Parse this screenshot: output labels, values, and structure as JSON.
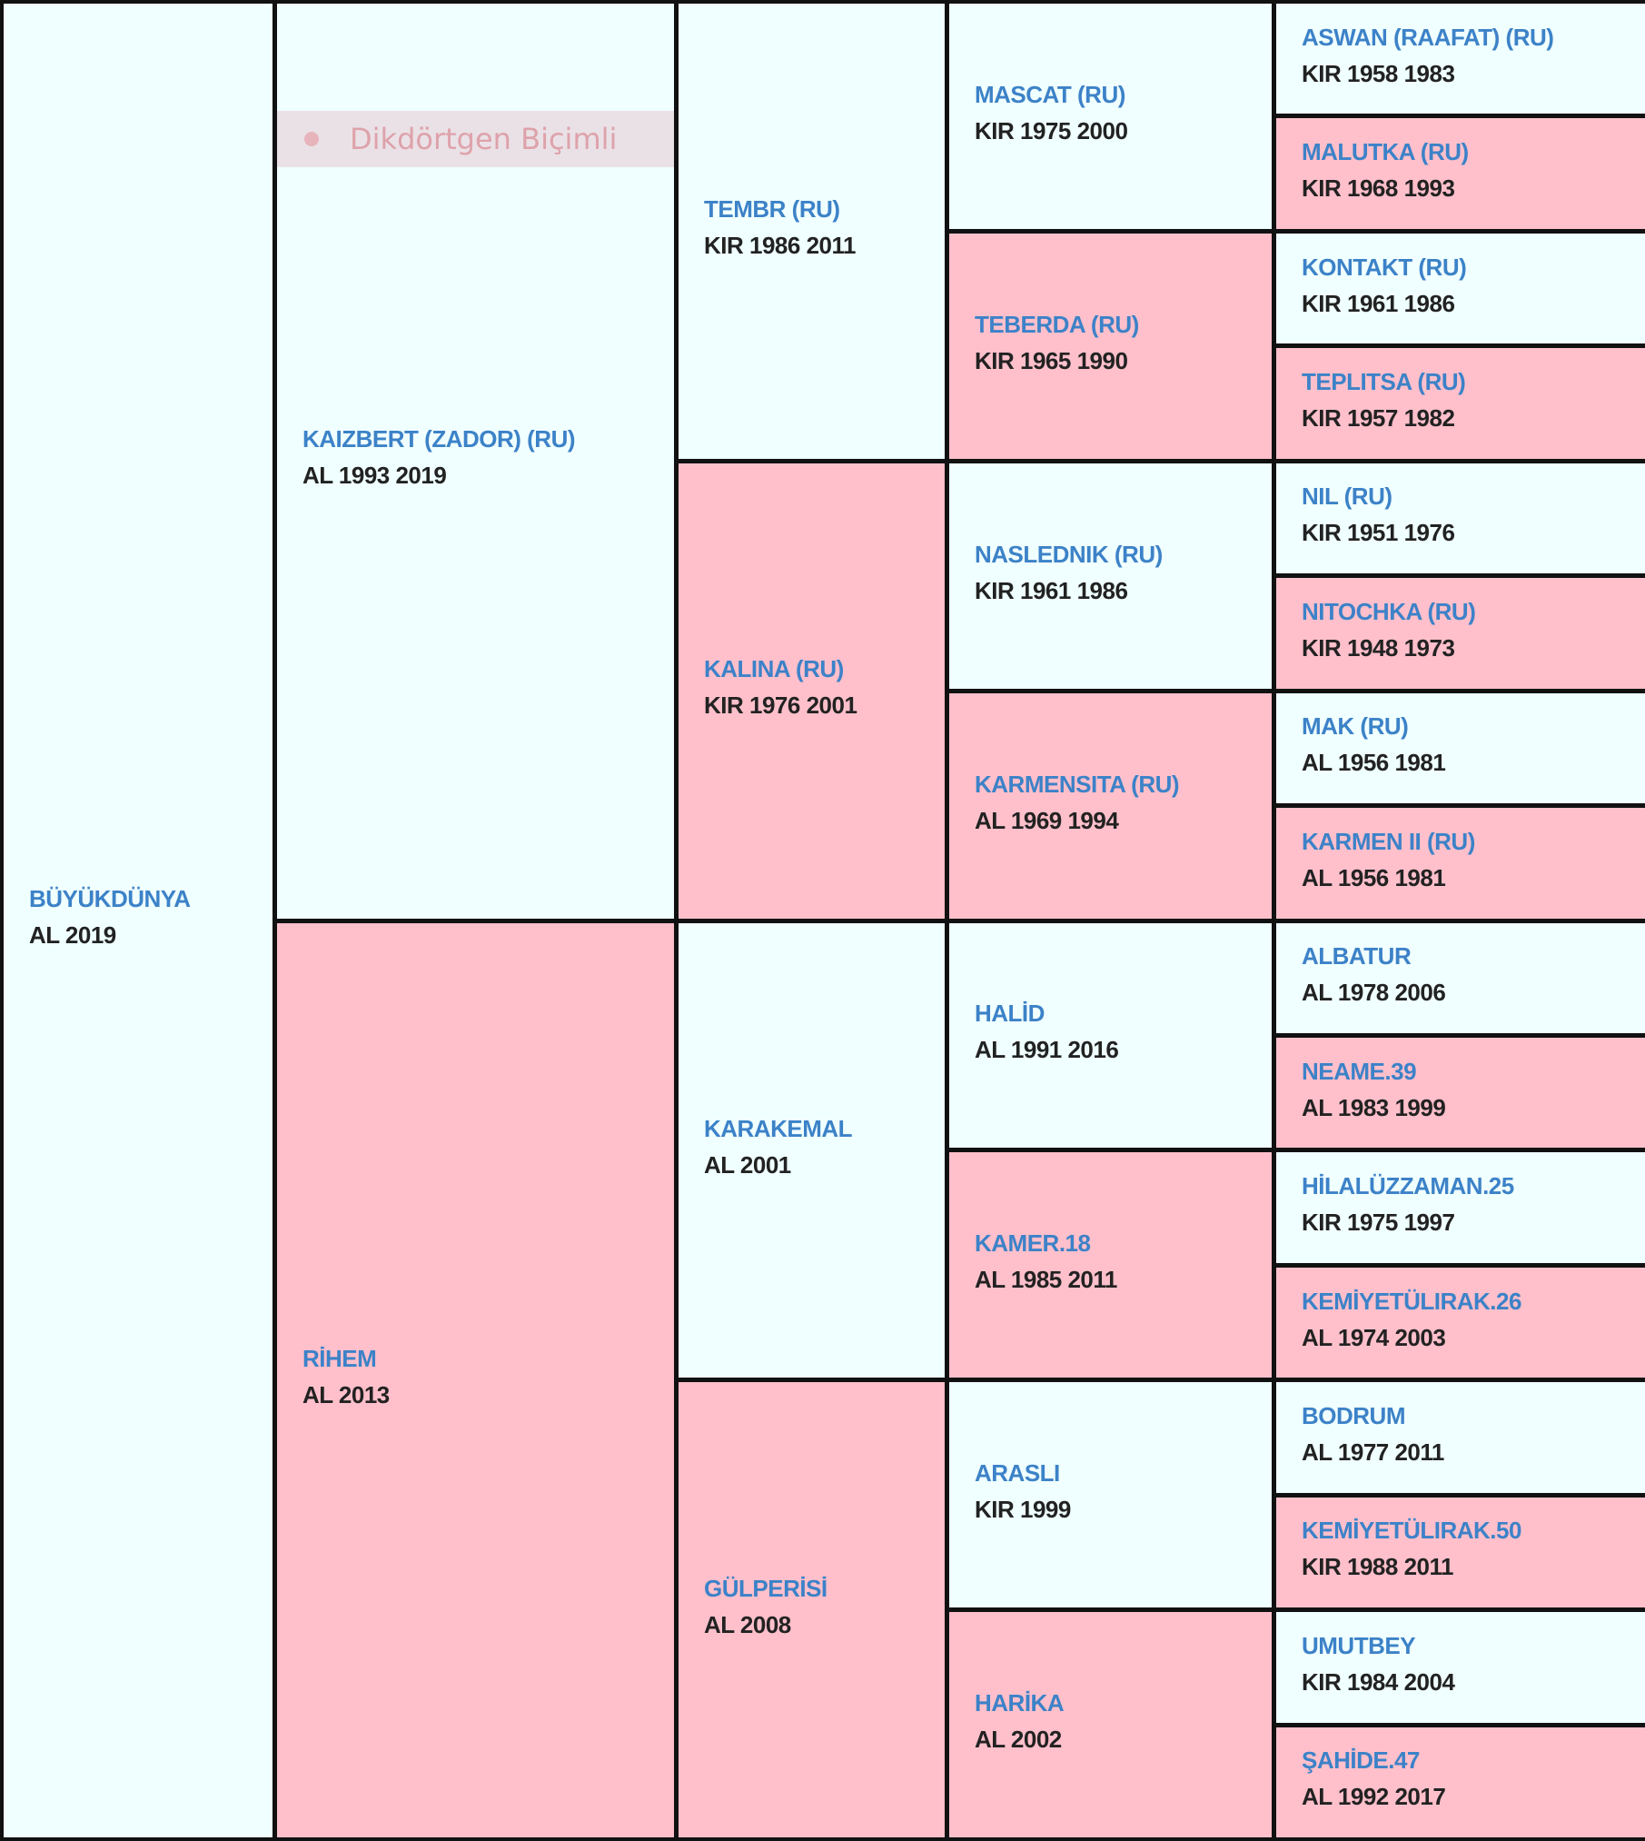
{
  "colors": {
    "sire_bg": "#f0ffff",
    "dam_bg": "#ffc0cb",
    "name": "#3c82c8",
    "info": "#222222",
    "border": "#111111"
  },
  "generations": [
    [
      {
        "name": "BÜYÜKDÜNYA",
        "info": "AL 2019"
      }
    ],
    [
      {
        "name": "KAIZBERT (ZADOR) (RU)",
        "info": "AL 1993 2019"
      },
      {
        "name": "RİHEM",
        "info": "AL 2013"
      }
    ],
    [
      {
        "name": "TEMBR (RU)",
        "info": "KIR 1986 2011"
      },
      {
        "name": "KALINA (RU)",
        "info": "KIR 1976 2001"
      },
      {
        "name": "KARAKEMAL",
        "info": "AL 2001"
      },
      {
        "name": "GÜLPERİSİ",
        "info": "AL 2008"
      }
    ],
    [
      {
        "name": "MASCAT (RU)",
        "info": "KIR 1975 2000"
      },
      {
        "name": "TEBERDA (RU)",
        "info": "KIR 1965 1990"
      },
      {
        "name": "NASLEDNIK (RU)",
        "info": "KIR 1961 1986"
      },
      {
        "name": "KARMENSITA (RU)",
        "info": "AL 1969 1994"
      },
      {
        "name": "HALİD",
        "info": "AL 1991 2016"
      },
      {
        "name": "KAMER.18",
        "info": "AL 1985 2011"
      },
      {
        "name": "ARASLI",
        "info": "KIR 1999"
      },
      {
        "name": "HARİKA",
        "info": "AL 2002"
      }
    ],
    [
      {
        "name": "ASWAN (RAAFAT) (RU)",
        "info": "KIR 1958 1983"
      },
      {
        "name": "MALUTKA (RU)",
        "info": "KIR 1968 1993"
      },
      {
        "name": "KONTAKT (RU)",
        "info": "KIR 1961 1986"
      },
      {
        "name": "TEPLITSA (RU)",
        "info": "KIR 1957 1982"
      },
      {
        "name": "NIL (RU)",
        "info": "KIR 1951 1976"
      },
      {
        "name": "NITOCHKA (RU)",
        "info": "KIR 1948 1973"
      },
      {
        "name": "MAK (RU)",
        "info": "AL 1956 1981"
      },
      {
        "name": "KARMEN II (RU)",
        "info": "AL 1956 1981"
      },
      {
        "name": "ALBATUR",
        "info": "AL 1978 2006"
      },
      {
        "name": "NEAME.39",
        "info": "AL 1983 1999"
      },
      {
        "name": "HİLALÜZZAMAN.25",
        "info": "KIR 1975 1997"
      },
      {
        "name": "KEMİYETÜLIRAK.26",
        "info": "AL 1974 2003"
      },
      {
        "name": "BODRUM",
        "info": "AL 1977 2011"
      },
      {
        "name": "KEMİYETÜLIRAK.50",
        "info": "KIR 1988 2011"
      },
      {
        "name": "UMUTBEY",
        "info": "KIR 1984 2004"
      },
      {
        "name": "ŞAHİDE.47",
        "info": "AL 1992 2017"
      }
    ]
  ],
  "overlay": {
    "label": "Dikdörtgen Biçimli"
  }
}
